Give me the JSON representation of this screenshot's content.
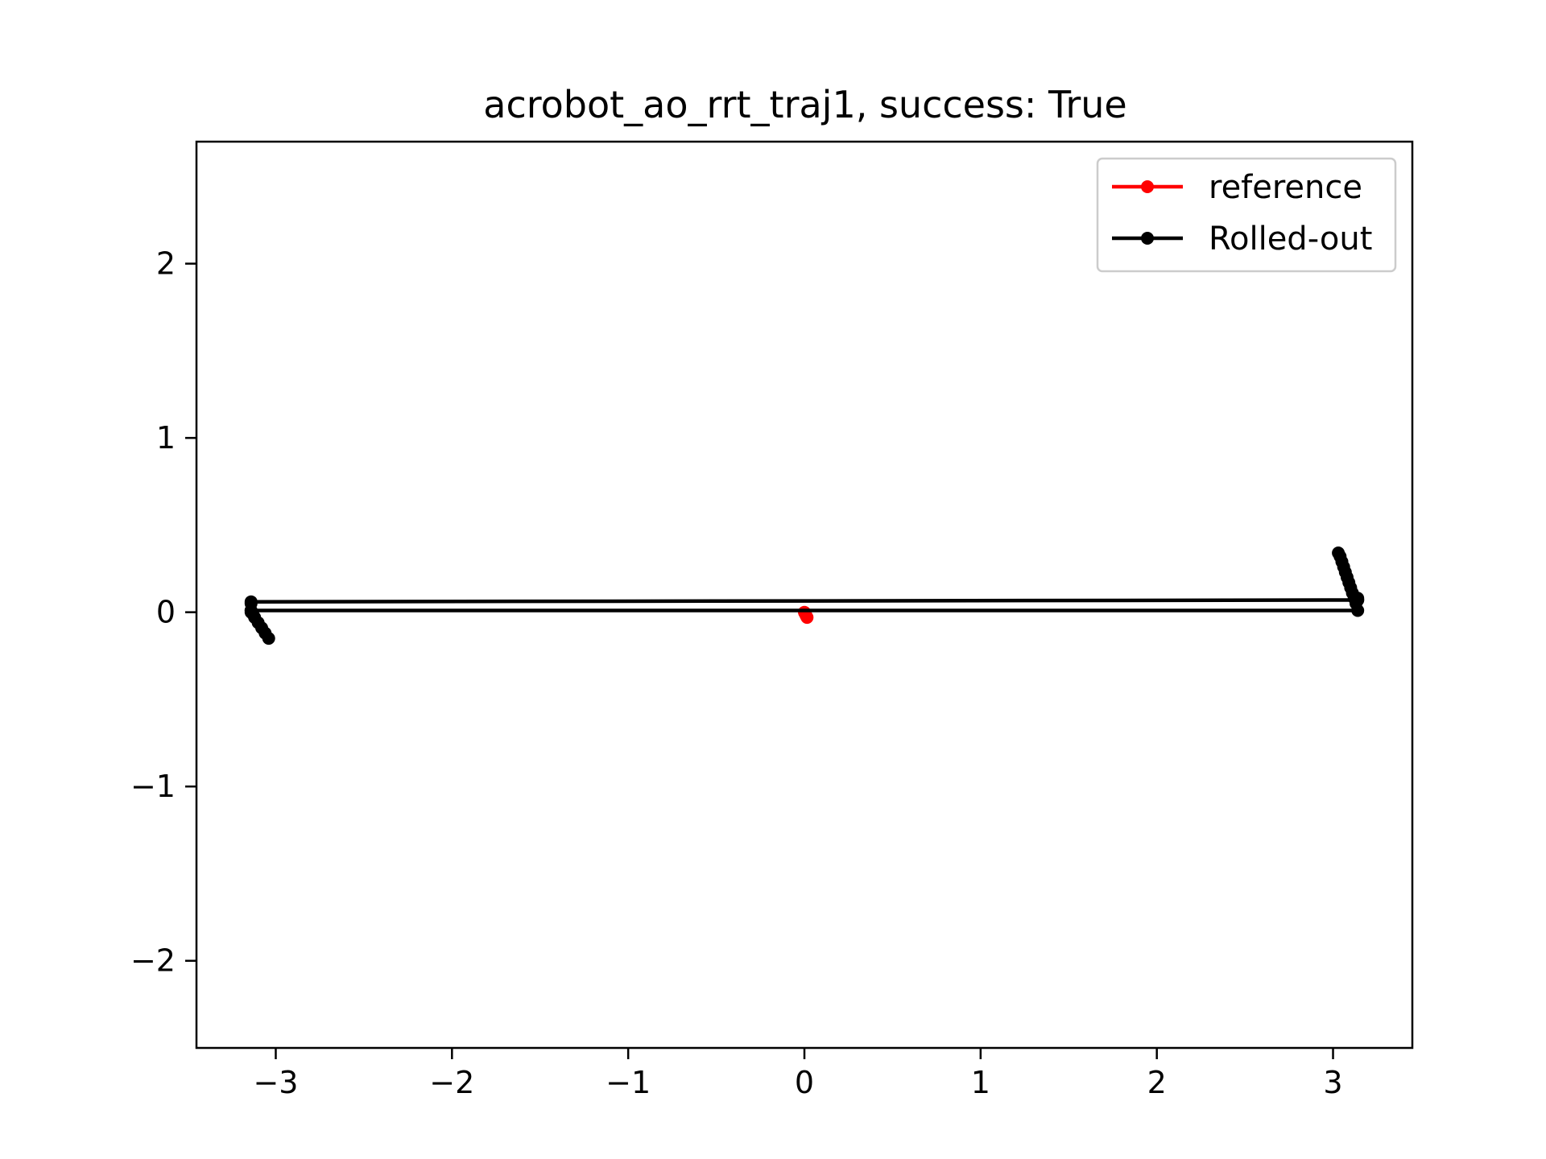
{
  "chart_data": {
    "type": "line",
    "title": "acrobot_ao_rrt_traj1, success: True",
    "xlabel": "",
    "ylabel": "",
    "xlim": [
      -3.45,
      3.45
    ],
    "ylim": [
      -2.5,
      2.7
    ],
    "xticks": [
      -3,
      -2,
      -1,
      0,
      1,
      2,
      3
    ],
    "yticks": [
      -2,
      -1,
      0,
      1,
      2
    ],
    "xtick_labels": [
      "−3",
      "−2",
      "−1",
      "0",
      "1",
      "2",
      "3"
    ],
    "ytick_labels": [
      "−2",
      "−1",
      "0",
      "1",
      "2"
    ],
    "grid": false,
    "legend_position": "top-right",
    "series": [
      {
        "name": "reference",
        "color": "#ff0000",
        "x": [
          0.0,
          0.005,
          0.01,
          0.015
        ],
        "y": [
          0.0,
          -0.01,
          -0.02,
          -0.03
        ]
      },
      {
        "name": "Rolled-out",
        "color": "#000000",
        "x": [
          -3.04,
          -3.06,
          -3.08,
          -3.1,
          -3.12,
          -3.13,
          -3.14,
          -3.14,
          -3.14,
          3.14,
          3.13,
          3.12,
          3.11,
          3.1,
          3.09,
          3.08,
          3.07,
          3.06,
          3.05,
          3.04,
          3.03,
          3.14,
          3.14,
          3.14,
          -3.14,
          -3.14
        ],
        "y": [
          -0.15,
          -0.12,
          -0.09,
          -0.06,
          -0.03,
          -0.01,
          0.0,
          0.01,
          0.01,
          0.01,
          0.05,
          0.08,
          0.11,
          0.14,
          0.17,
          0.2,
          0.23,
          0.26,
          0.29,
          0.32,
          0.34,
          0.08,
          0.07,
          0.07,
          0.06,
          0.05
        ]
      }
    ]
  }
}
